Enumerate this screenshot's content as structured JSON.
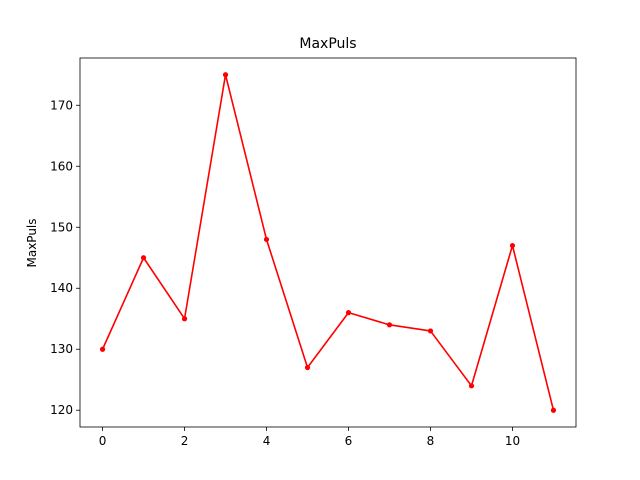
{
  "chart_data": {
    "type": "line",
    "title": "MaxPuls",
    "xlabel": "",
    "ylabel": "MaxPuls",
    "xlim": [
      -0.55,
      11.55
    ],
    "ylim": [
      117.25,
      177.75
    ],
    "xticks": [
      0,
      2,
      4,
      6,
      8,
      10
    ],
    "yticks": [
      120,
      130,
      140,
      150,
      160,
      170
    ],
    "grid": false,
    "legend": "none",
    "series": [
      {
        "color": "#ff0000",
        "marker": "dot",
        "x": [
          0,
          1,
          2,
          3,
          4,
          5,
          6,
          7,
          8,
          9,
          10,
          11
        ],
        "y": [
          130,
          145,
          135,
          175,
          148,
          127,
          136,
          134,
          133,
          124,
          147,
          120
        ]
      }
    ]
  }
}
